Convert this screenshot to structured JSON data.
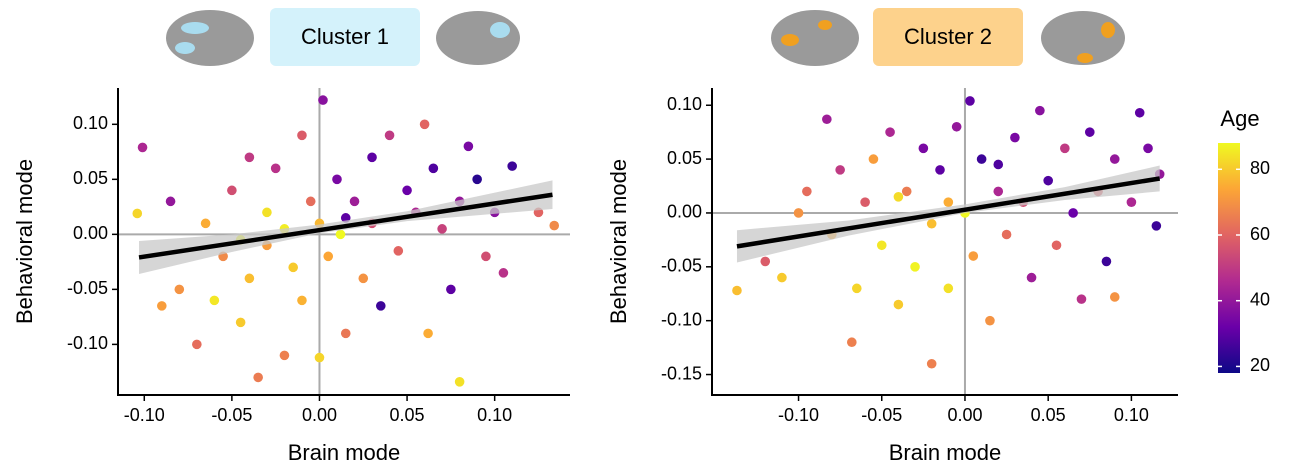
{
  "chart_data": [
    {
      "type": "scatter",
      "title": "Cluster 1",
      "title_box_color": "#d4f2fb",
      "xlabel": "Brain mode",
      "ylabel": "Behavioral mode",
      "xlim": [
        -0.115,
        0.143
      ],
      "ylim": [
        -0.146,
        0.133
      ],
      "xticks": [
        {
          "value": -0.1,
          "label": "-0.10"
        },
        -0.05,
        {
          "value": 0,
          "label": "0.00"
        },
        0.05,
        {
          "value": 0.1,
          "label": "0.10"
        }
      ],
      "yticks": [
        {
          "value": -0.1,
          "label": "-0.10"
        },
        -0.05,
        {
          "value": 0,
          "label": "0.00"
        },
        0.05,
        {
          "value": 0.1,
          "label": "0.10"
        }
      ],
      "zero_lines": true,
      "x": [
        -0.101,
        -0.104,
        -0.085,
        -0.08,
        -0.07,
        -0.065,
        -0.06,
        -0.055,
        -0.05,
        -0.045,
        -0.04,
        -0.04,
        -0.035,
        -0.03,
        -0.03,
        -0.025,
        -0.02,
        -0.02,
        -0.015,
        -0.01,
        -0.01,
        -0.005,
        0.0,
        0.002,
        0.005,
        0.01,
        0.012,
        0.015,
        0.02,
        0.025,
        0.03,
        0.03,
        0.035,
        0.04,
        0.045,
        0.05,
        0.055,
        0.06,
        0.062,
        0.065,
        0.07,
        0.075,
        0.08,
        0.08,
        0.085,
        0.09,
        0.095,
        0.1,
        0.105,
        0.11,
        0.125,
        0.134,
        -0.09,
        0.0,
        0.015,
        -0.045
      ],
      "y": [
        0.079,
        0.019,
        0.03,
        -0.05,
        -0.1,
        0.01,
        -0.06,
        -0.02,
        0.04,
        -0.08,
        0.07,
        -0.04,
        -0.13,
        0.02,
        -0.01,
        0.06,
        -0.11,
        0.005,
        -0.03,
        0.09,
        -0.06,
        0.03,
        -0.112,
        0.122,
        -0.02,
        0.05,
        0.0,
        -0.09,
        0.03,
        -0.04,
        0.07,
        0.01,
        -0.065,
        0.09,
        -0.015,
        0.04,
        0.02,
        0.1,
        -0.09,
        0.06,
        0.005,
        -0.05,
        0.03,
        -0.134,
        0.08,
        0.05,
        -0.02,
        0.02,
        -0.035,
        0.062,
        0.02,
        0.008,
        -0.065,
        0.01,
        0.015,
        -0.005
      ],
      "age": [
        45,
        82,
        40,
        70,
        62,
        75,
        85,
        68,
        55,
        80,
        50,
        78,
        65,
        84,
        72,
        48,
        66,
        86,
        80,
        58,
        76,
        62,
        82,
        38,
        74,
        35,
        88,
        64,
        42,
        70,
        30,
        55,
        25,
        50,
        60,
        32,
        45,
        60,
        75,
        28,
        52,
        30,
        40,
        84,
        35,
        22,
        55,
        38,
        48,
        25,
        60,
        68,
        72,
        77,
        30,
        88
      ],
      "fit": {
        "x": [
          -0.103,
          0.133
        ],
        "y": [
          -0.021,
          0.036
        ]
      },
      "ci": {
        "x": [
          -0.103,
          -0.05,
          0.0,
          0.05,
          0.133
        ],
        "lower": [
          -0.036,
          -0.016,
          0.001,
          0.012,
          0.023
        ],
        "upper": [
          -0.006,
          0.0,
          0.009,
          0.021,
          0.049
        ]
      }
    },
    {
      "type": "scatter",
      "title": "Cluster 2",
      "title_box_color": "#fdd28c",
      "xlabel": "Brain mode",
      "ylabel": "Behavioral mode",
      "xlim": [
        -0.152,
        0.128
      ],
      "ylim": [
        -0.169,
        0.116
      ],
      "xticks": [
        {
          "value": -0.1,
          "label": "-0.10"
        },
        -0.05,
        {
          "value": 0,
          "label": "0.00"
        },
        0.05,
        {
          "value": 0.1,
          "label": "0.10"
        }
      ],
      "yticks": [
        -0.15,
        {
          "value": -0.1,
          "label": "-0.10"
        },
        -0.05,
        {
          "value": 0,
          "label": "0.00"
        },
        0.05,
        {
          "value": 0.1,
          "label": "0.10"
        }
      ],
      "zero_lines": true,
      "x": [
        -0.137,
        -0.12,
        -0.11,
        -0.1,
        -0.095,
        -0.083,
        -0.08,
        -0.075,
        -0.068,
        -0.065,
        -0.06,
        -0.055,
        -0.05,
        -0.045,
        -0.04,
        -0.035,
        -0.03,
        -0.025,
        -0.02,
        -0.02,
        -0.015,
        -0.01,
        -0.005,
        0.0,
        0.003,
        0.005,
        0.01,
        0.015,
        0.02,
        0.025,
        0.03,
        0.035,
        0.04,
        0.045,
        0.05,
        0.055,
        0.06,
        0.065,
        0.07,
        0.075,
        0.08,
        0.085,
        0.09,
        0.09,
        0.1,
        0.105,
        0.11,
        0.115,
        0.117,
        -0.04,
        0.02,
        -0.01
      ],
      "y": [
        -0.072,
        -0.045,
        -0.06,
        0.0,
        0.02,
        0.087,
        -0.02,
        0.04,
        -0.12,
        -0.07,
        0.01,
        0.05,
        -0.03,
        0.075,
        -0.085,
        0.02,
        -0.05,
        0.06,
        -0.14,
        -0.01,
        0.04,
        -0.07,
        0.08,
        0.0,
        0.104,
        -0.04,
        0.05,
        -0.1,
        0.02,
        -0.02,
        0.07,
        0.01,
        -0.06,
        0.095,
        0.03,
        -0.03,
        0.06,
        0.0,
        -0.08,
        0.075,
        0.02,
        -0.045,
        0.05,
        -0.078,
        0.01,
        0.093,
        0.06,
        -0.012,
        0.036,
        0.015,
        0.045,
        0.01
      ],
      "age": [
        78,
        58,
        80,
        70,
        62,
        42,
        75,
        50,
        66,
        82,
        58,
        72,
        85,
        45,
        80,
        65,
        87,
        35,
        66,
        78,
        30,
        84,
        40,
        88,
        30,
        72,
        25,
        70,
        45,
        62,
        35,
        55,
        42,
        38,
        28,
        60,
        50,
        32,
        48,
        30,
        58,
        25,
        40,
        70,
        45,
        30,
        35,
        25,
        40,
        83,
        28,
        75
      ],
      "fit": {
        "x": [
          -0.137,
          0.117
        ],
        "y": [
          -0.031,
          0.032
        ]
      },
      "ci": {
        "x": [
          -0.137,
          -0.07,
          0.0,
          0.06,
          0.117
        ],
        "lower": [
          -0.046,
          -0.021,
          0.0,
          0.012,
          0.02
        ],
        "upper": [
          -0.016,
          -0.007,
          0.008,
          0.024,
          0.044
        ]
      }
    }
  ],
  "colorbar": {
    "title": "Age",
    "lim": [
      18,
      88
    ],
    "ticks": [
      20,
      40,
      60,
      80
    ],
    "colors": [
      "#0d0887",
      "#6a00a8",
      "#b12a90",
      "#e16462",
      "#fca636",
      "#f0f921"
    ]
  }
}
